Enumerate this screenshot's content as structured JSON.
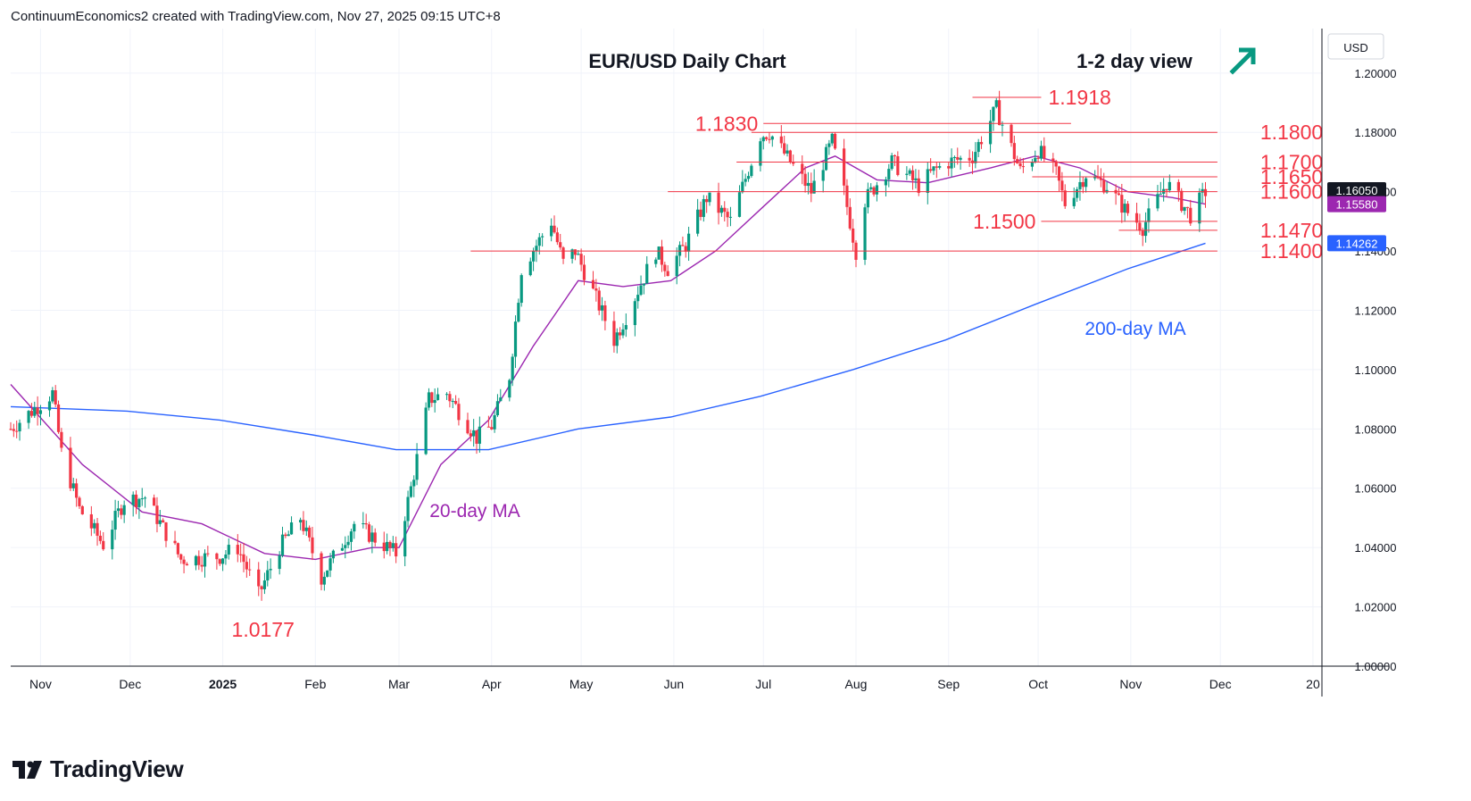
{
  "header": {
    "attribution": "ContinuumEconomics2 created with TradingView.com, Nov 27, 2025 09:15 UTC+8"
  },
  "footer": {
    "brand": "TradingView"
  },
  "chart_data": {
    "type": "candlestick",
    "title": "EUR/USD Daily Chart",
    "subtitle": "1-2 day view",
    "currency_label": "USD",
    "ylim": [
      1.0,
      1.215
    ],
    "y_ticks": [
      "1.20000",
      "1.18000",
      "1.16000",
      "1.14000",
      "1.12000",
      "1.10000",
      "1.08000",
      "1.06000",
      "1.04000",
      "1.02000",
      "1.00000"
    ],
    "x_ticks": [
      "Nov",
      "Dec",
      "2025",
      "Feb",
      "Mar",
      "Apr",
      "May",
      "Jun",
      "Jul",
      "Aug",
      "Sep",
      "Oct",
      "Nov",
      "Dec",
      "20"
    ],
    "x_tick_dates": [
      "2024-11-01",
      "2024-12-01",
      "2025-01-01",
      "2025-02-01",
      "2025-03-01",
      "2025-04-01",
      "2025-05-01",
      "2025-06-01",
      "2025-07-01",
      "2025-08-01",
      "2025-09-01",
      "2025-10-01",
      "2025-11-01",
      "2025-12-01",
      "2026-01-01"
    ],
    "x_range": [
      "2024-10-22",
      "2026-01-04"
    ],
    "price_badges": [
      {
        "label": "1.16050",
        "value": 1.1605,
        "color": "#131722"
      },
      {
        "label": "1.15580",
        "value": 1.1558,
        "color": "#9c27b0"
      },
      {
        "label": "1.14262",
        "value": 1.14262,
        "color": "#2962ff"
      }
    ],
    "levels": [
      {
        "label": "1.1918",
        "value": 1.1918,
        "from": "2025-09-09",
        "to": "2025-10-02"
      },
      {
        "label": "1.1830",
        "value": 1.183,
        "from": "2025-07-01",
        "to": "2025-10-12"
      },
      {
        "label": "1.1800",
        "value": 1.18,
        "from": "2025-06-27",
        "to": "2025-11-30"
      },
      {
        "label": "1.1700",
        "value": 1.17,
        "from": "2025-06-22",
        "to": "2025-11-30"
      },
      {
        "label": "1.1650",
        "value": 1.165,
        "from": "2025-09-29",
        "to": "2025-11-30"
      },
      {
        "label": "1.1600",
        "value": 1.16,
        "from": "2025-05-30",
        "to": "2025-11-30"
      },
      {
        "label": "1.1500",
        "value": 1.15,
        "from": "2025-10-02",
        "to": "2025-11-30"
      },
      {
        "label": "1.1470",
        "value": 1.147,
        "from": "2025-10-28",
        "to": "2025-11-30"
      },
      {
        "label": "1.1400",
        "value": 1.14,
        "from": "2025-03-25",
        "to": "2025-11-30"
      }
    ],
    "low_label": {
      "label": "1.0177",
      "value": 1.0177,
      "date": "2025-01-13"
    },
    "ma_labels": {
      "ma20": "20-day MA",
      "ma200": "200-day MA"
    },
    "ma20_color": "#9c27b0",
    "ma200_color": "#2962ff",
    "up_color": "#089981",
    "down_color": "#f23645",
    "level_color": "#f23645",
    "arrow_color": "#089981",
    "close_path": [
      [
        "2024-10-22",
        1.08
      ],
      [
        "2024-11-05",
        1.092
      ],
      [
        "2024-11-08",
        1.072
      ],
      [
        "2024-11-14",
        1.053
      ],
      [
        "2024-11-22",
        1.041
      ],
      [
        "2024-11-29",
        1.056
      ],
      [
        "2024-12-06",
        1.057
      ],
      [
        "2024-12-18",
        1.036
      ],
      [
        "2024-12-31",
        1.037
      ],
      [
        "2025-01-06",
        1.04
      ],
      [
        "2025-01-13",
        1.024
      ],
      [
        "2025-01-20",
        1.04
      ],
      [
        "2025-01-27",
        1.05
      ],
      [
        "2025-02-03",
        1.03
      ],
      [
        "2025-02-14",
        1.048
      ],
      [
        "2025-02-28",
        1.038
      ],
      [
        "2025-03-05",
        1.06
      ],
      [
        "2025-03-11",
        1.09
      ],
      [
        "2025-03-17",
        1.092
      ],
      [
        "2025-03-27",
        1.077
      ],
      [
        "2025-04-01",
        1.081
      ],
      [
        "2025-04-07",
        1.098
      ],
      [
        "2025-04-11",
        1.134
      ],
      [
        "2025-04-21",
        1.15
      ],
      [
        "2025-04-25",
        1.136
      ],
      [
        "2025-04-29",
        1.14
      ],
      [
        "2025-05-12",
        1.11
      ],
      [
        "2025-05-16",
        1.118
      ],
      [
        "2025-05-26",
        1.14
      ],
      [
        "2025-05-30",
        1.134
      ],
      [
        "2025-06-05",
        1.142
      ],
      [
        "2025-06-12",
        1.158
      ],
      [
        "2025-06-20",
        1.15
      ],
      [
        "2025-06-30",
        1.179
      ],
      [
        "2025-07-03",
        1.18
      ],
      [
        "2025-07-10",
        1.17
      ],
      [
        "2025-07-17",
        1.16
      ],
      [
        "2025-07-24",
        1.177
      ],
      [
        "2025-07-28",
        1.16
      ],
      [
        "2025-08-01",
        1.14
      ],
      [
        "2025-08-04",
        1.157
      ],
      [
        "2025-08-13",
        1.17
      ],
      [
        "2025-08-22",
        1.162
      ],
      [
        "2025-08-27",
        1.167
      ],
      [
        "2025-09-01",
        1.17
      ],
      [
        "2025-09-09",
        1.172
      ],
      [
        "2025-09-17",
        1.188
      ],
      [
        "2025-09-25",
        1.167
      ],
      [
        "2025-10-01",
        1.174
      ],
      [
        "2025-10-07",
        1.166
      ],
      [
        "2025-10-10",
        1.156
      ],
      [
        "2025-10-17",
        1.166
      ],
      [
        "2025-10-24",
        1.162
      ],
      [
        "2025-10-30",
        1.154
      ],
      [
        "2025-11-05",
        1.148
      ],
      [
        "2025-11-13",
        1.163
      ],
      [
        "2025-11-21",
        1.152
      ],
      [
        "2025-11-26",
        1.16
      ]
    ],
    "ma20_path": [
      [
        "2024-10-22",
        1.095
      ],
      [
        "2024-11-15",
        1.068
      ],
      [
        "2024-12-05",
        1.052
      ],
      [
        "2024-12-25",
        1.048
      ],
      [
        "2025-01-15",
        1.038
      ],
      [
        "2025-02-01",
        1.036
      ],
      [
        "2025-02-20",
        1.04
      ],
      [
        "2025-03-01",
        1.04
      ],
      [
        "2025-03-15",
        1.068
      ],
      [
        "2025-03-31",
        1.083
      ],
      [
        "2025-04-15",
        1.108
      ],
      [
        "2025-04-30",
        1.13
      ],
      [
        "2025-05-15",
        1.128
      ],
      [
        "2025-05-31",
        1.13
      ],
      [
        "2025-06-15",
        1.14
      ],
      [
        "2025-07-01",
        1.155
      ],
      [
        "2025-07-15",
        1.168
      ],
      [
        "2025-07-25",
        1.172
      ],
      [
        "2025-08-08",
        1.164
      ],
      [
        "2025-08-25",
        1.163
      ],
      [
        "2025-09-15",
        1.168
      ],
      [
        "2025-09-30",
        1.172
      ],
      [
        "2025-10-15",
        1.168
      ],
      [
        "2025-10-31",
        1.16
      ],
      [
        "2025-11-15",
        1.158
      ],
      [
        "2025-11-26",
        1.1558
      ]
    ],
    "ma200_path": [
      [
        "2024-10-22",
        1.0875
      ],
      [
        "2024-11-30",
        1.086
      ],
      [
        "2024-12-31",
        1.083
      ],
      [
        "2025-01-31",
        1.078
      ],
      [
        "2025-02-28",
        1.073
      ],
      [
        "2025-03-31",
        1.073
      ],
      [
        "2025-04-30",
        1.08
      ],
      [
        "2025-05-31",
        1.084
      ],
      [
        "2025-06-30",
        1.091
      ],
      [
        "2025-07-31",
        1.1
      ],
      [
        "2025-08-31",
        1.11
      ],
      [
        "2025-09-30",
        1.122
      ],
      [
        "2025-10-31",
        1.134
      ],
      [
        "2025-11-26",
        1.1426
      ]
    ]
  }
}
